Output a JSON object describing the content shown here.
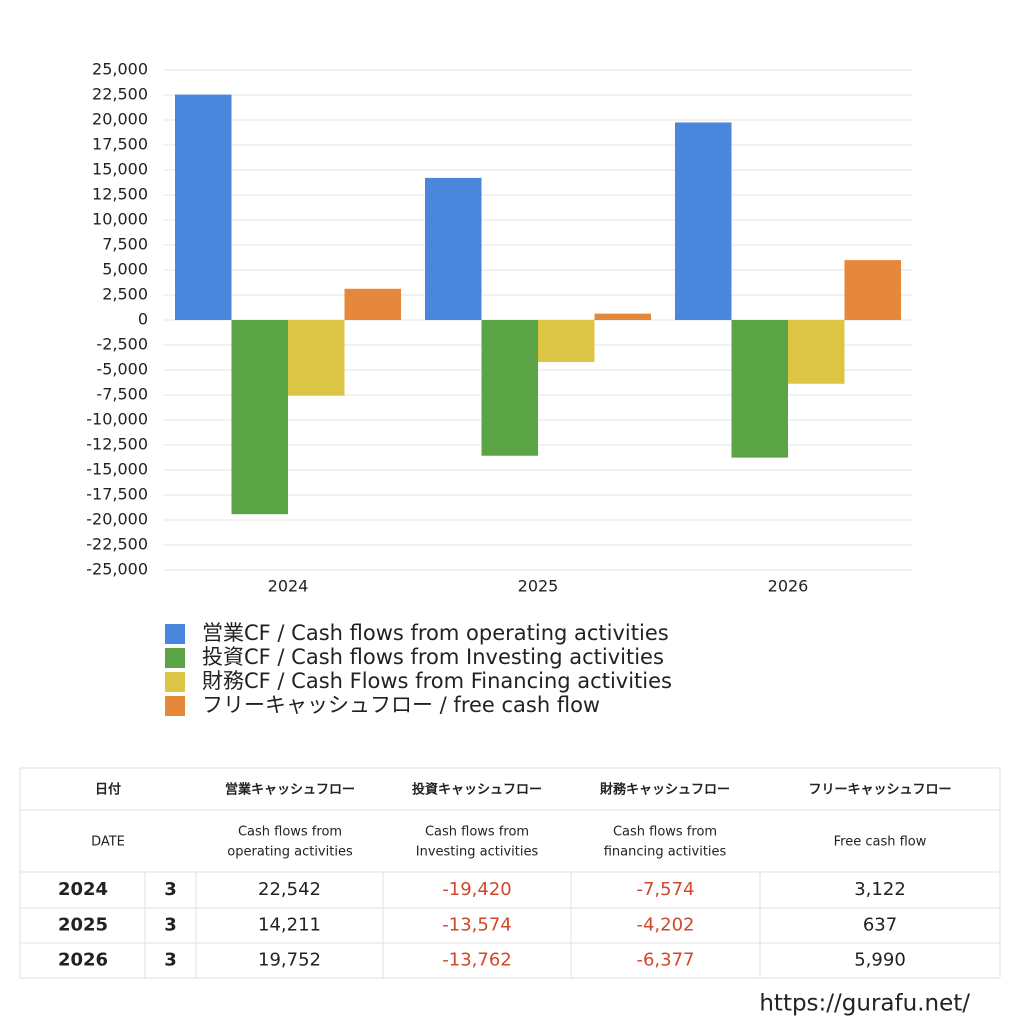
{
  "chart_data": {
    "type": "bar",
    "categories": [
      "2024",
      "2025",
      "2026"
    ],
    "series": [
      {
        "name": "営業CF / Cash flows from operating activities",
        "color": "#4a86dc",
        "values": [
          22542,
          14211,
          19752
        ]
      },
      {
        "name": "投資CF / Cash flows from Investing activities",
        "color": "#5ba446",
        "values": [
          -19420,
          -13574,
          -13762
        ]
      },
      {
        "name": "財務CF / Cash Flows from Financing activities",
        "color": "#dcc445",
        "values": [
          -7574,
          -4202,
          -6377
        ]
      },
      {
        "name": "フリーキャッシュフロー / free cash flow",
        "color": "#e5883c",
        "values": [
          3122,
          637,
          5990
        ]
      }
    ],
    "ylim": [
      -25000,
      25000
    ],
    "yticks": [
      {
        "value": 25000,
        "label": "25,000"
      },
      {
        "value": 22500,
        "label": "22,500"
      },
      {
        "value": 20000,
        "label": "20,000"
      },
      {
        "value": 17500,
        "label": "17,500"
      },
      {
        "value": 15000,
        "label": "15,000"
      },
      {
        "value": 12500,
        "label": "12,500"
      },
      {
        "value": 10000,
        "label": "10,000"
      },
      {
        "value": 7500,
        "label": "7,500"
      },
      {
        "value": 5000,
        "label": "5,000"
      },
      {
        "value": 2500,
        "label": "2,500"
      },
      0,
      {
        "value": -2500,
        "label": "-2,500"
      },
      {
        "value": -5000,
        "label": "-5,000"
      },
      {
        "value": -7500,
        "label": "-7,500"
      },
      {
        "value": -10000,
        "label": "-10,000"
      },
      {
        "value": -12500,
        "label": "-12,500"
      },
      {
        "value": -15000,
        "label": "-15,000"
      },
      {
        "value": -17500,
        "label": "-17,500"
      },
      {
        "value": -20000,
        "label": "-20,000"
      },
      {
        "value": -22500,
        "label": "-22,500"
      },
      {
        "value": -25000,
        "label": "-25,000"
      }
    ],
    "grid": true
  },
  "table": {
    "headers": [
      "日付",
      "営業キャッシュフロー",
      "投資キャッシュフロー",
      "財務キャッシュフロー",
      "フリーキャッシュフロー"
    ],
    "subheaders": [
      [
        "DATE"
      ],
      [
        "Cash flows from",
        "operating activities"
      ],
      [
        "Cash flows from",
        "Investing activities"
      ],
      [
        "Cash flows from",
        "financing activities"
      ],
      [
        "Free cash flow"
      ]
    ],
    "rows": [
      [
        "2024",
        "3",
        "22,542",
        "-19,420",
        "-7,574",
        "3,122"
      ],
      [
        "2025",
        "3",
        "14,211",
        "-13,574",
        "-4,202",
        "637"
      ],
      [
        "2026",
        "3",
        "19,752",
        "-13,762",
        "-6,377",
        "5,990"
      ]
    ]
  },
  "footer": "https://gurafu.net/"
}
